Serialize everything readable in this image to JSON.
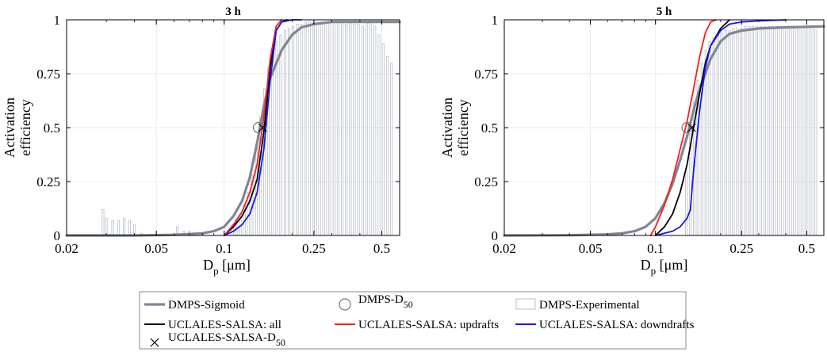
{
  "colors": {
    "sigmoid": "#7f8694",
    "experimental": "#b9bec6",
    "all": "#000000",
    "updrafts": "#ff1a1a",
    "downdrafts": "#1515ff",
    "frame": "#000000"
  },
  "legend": {
    "items": [
      {
        "key": "sigmoid",
        "label": "DMPS-Sigmoid",
        "symbol": "thick-line"
      },
      {
        "key": "d50",
        "label": "DMPS-D",
        "sub": "50",
        "symbol": "circle"
      },
      {
        "key": "experimental",
        "label": "DMPS-Experimental",
        "symbol": "box"
      },
      {
        "key": "all",
        "label": "UCLALES-SALSA: all",
        "symbol": "line"
      },
      {
        "key": "updrafts",
        "label": "UCLALES-SALSA: updrafts",
        "symbol": "line"
      },
      {
        "key": "downdrafts",
        "label": "UCLALES-SALSA: downdrafts",
        "symbol": "line"
      },
      {
        "key": "model_d50",
        "label": "UCLALES-SALSA-D",
        "sub": "50",
        "symbol": "cross"
      }
    ]
  },
  "chart_data": [
    {
      "type": "line",
      "title": "3 h",
      "xlabel": "D",
      "xlabel_sub": "p",
      "xlabel_unit": " [μm]",
      "ylabel_lines": [
        "Activation",
        "efficiency"
      ],
      "xscale": "log",
      "xlim": [
        0.02,
        0.6
      ],
      "ylim": [
        0,
        1
      ],
      "xticks": [
        0.02,
        0.05,
        0.1,
        0.25,
        0.5
      ],
      "xtick_labels": [
        "0.02",
        "0.05",
        "0.1",
        "0.25",
        "0.5"
      ],
      "yticks": [
        0,
        0.25,
        0.5,
        0.75,
        1
      ],
      "ytick_labels": [
        "0",
        "0.25",
        "0.5",
        "0.75",
        "1"
      ],
      "grid": true,
      "series": [
        {
          "key": "sigmoid",
          "x": [
            0.02,
            0.04,
            0.06,
            0.08,
            0.09,
            0.1,
            0.11,
            0.12,
            0.13,
            0.14,
            0.15,
            0.16,
            0.18,
            0.2,
            0.22,
            0.25,
            0.3,
            0.6
          ],
          "y": [
            0,
            0,
            0.003,
            0.01,
            0.02,
            0.04,
            0.09,
            0.16,
            0.27,
            0.43,
            0.6,
            0.73,
            0.86,
            0.93,
            0.965,
            0.98,
            0.99,
            0.99
          ]
        },
        {
          "key": "all",
          "x": [
            0.1,
            0.11,
            0.12,
            0.13,
            0.14,
            0.15,
            0.16,
            0.17,
            0.18,
            0.19
          ],
          "y": [
            0,
            0.04,
            0.09,
            0.16,
            0.26,
            0.48,
            0.78,
            0.95,
            0.99,
            1.0
          ]
        },
        {
          "key": "updrafts",
          "x": [
            0.1,
            0.11,
            0.12,
            0.13,
            0.14,
            0.15,
            0.16,
            0.17,
            0.18
          ],
          "y": [
            0,
            0.05,
            0.11,
            0.2,
            0.33,
            0.55,
            0.82,
            0.97,
            1.0
          ]
        },
        {
          "key": "downdrafts",
          "x": [
            0.1,
            0.11,
            0.12,
            0.13,
            0.14,
            0.15,
            0.16,
            0.17,
            0.18,
            0.2,
            0.22
          ],
          "y": [
            0,
            0.02,
            0.05,
            0.1,
            0.2,
            0.4,
            0.72,
            0.95,
            0.99,
            1.0,
            1.0
          ]
        }
      ],
      "d50_circle": {
        "x": 0.142,
        "y": 0.5
      },
      "d50_cross": {
        "x": 0.148,
        "y": 0.5
      },
      "bars": {
        "x": [
          0.029,
          0.03,
          0.032,
          0.034,
          0.036,
          0.038,
          0.04,
          0.043,
          0.062,
          0.066,
          0.07,
          0.075,
          0.08,
          0.109,
          0.113,
          0.118,
          0.123,
          0.128,
          0.133,
          0.139,
          0.145,
          0.151,
          0.157,
          0.164,
          0.171,
          0.178,
          0.186,
          0.194,
          0.202,
          0.211,
          0.22,
          0.229,
          0.239,
          0.249,
          0.26,
          0.271,
          0.282,
          0.294,
          0.307,
          0.32,
          0.334,
          0.348,
          0.363,
          0.378,
          0.394,
          0.411,
          0.429,
          0.447,
          0.466,
          0.486,
          0.507,
          0.529,
          0.551
        ],
        "y": [
          0.12,
          0.08,
          0.07,
          0.07,
          0.08,
          0.07,
          0.05,
          0.01,
          0.04,
          0.02,
          0.02,
          0.01,
          0.01,
          0.05,
          0.08,
          0.1,
          0.14,
          0.2,
          0.28,
          0.42,
          0.55,
          0.68,
          0.78,
          0.85,
          0.9,
          0.93,
          0.95,
          0.96,
          0.97,
          0.98,
          0.98,
          0.99,
          0.99,
          0.99,
          0.99,
          0.99,
          0.99,
          0.99,
          0.99,
          0.99,
          0.99,
          0.98,
          0.99,
          0.98,
          0.98,
          0.97,
          0.99,
          0.99,
          0.97,
          0.93,
          0.89,
          0.83,
          0.8
        ]
      }
    },
    {
      "type": "line",
      "title": "5 h",
      "xlabel": "D",
      "xlabel_sub": "p",
      "xlabel_unit": " [μm]",
      "ylabel_lines": [
        "Activation",
        "efficiency"
      ],
      "xscale": "log",
      "xlim": [
        0.02,
        0.6
      ],
      "ylim": [
        0,
        1
      ],
      "xticks": [
        0.02,
        0.05,
        0.1,
        0.25,
        0.5
      ],
      "xtick_labels": [
        "0.02",
        "0.05",
        "0.1",
        "0.25",
        "0.5"
      ],
      "yticks": [
        0,
        0.25,
        0.5,
        0.75,
        1
      ],
      "ytick_labels": [
        "0",
        "0.25",
        "0.5",
        "0.75",
        "1"
      ],
      "grid": true,
      "series": [
        {
          "key": "sigmoid",
          "x": [
            0.02,
            0.04,
            0.06,
            0.07,
            0.08,
            0.09,
            0.1,
            0.11,
            0.12,
            0.13,
            0.14,
            0.15,
            0.16,
            0.18,
            0.2,
            0.22,
            0.25,
            0.3,
            0.4,
            0.6
          ],
          "y": [
            0,
            0.001,
            0.005,
            0.01,
            0.02,
            0.04,
            0.08,
            0.15,
            0.24,
            0.35,
            0.46,
            0.58,
            0.68,
            0.82,
            0.9,
            0.935,
            0.95,
            0.96,
            0.965,
            0.97
          ]
        },
        {
          "key": "all",
          "x": [
            0.1,
            0.11,
            0.12,
            0.13,
            0.14,
            0.15,
            0.16,
            0.17,
            0.18,
            0.2,
            0.22
          ],
          "y": [
            0,
            0.04,
            0.1,
            0.2,
            0.33,
            0.5,
            0.66,
            0.8,
            0.88,
            0.96,
            1.0
          ]
        },
        {
          "key": "updrafts",
          "x": [
            0.095,
            0.1,
            0.11,
            0.12,
            0.13,
            0.14,
            0.15,
            0.16,
            0.17,
            0.18,
            0.19
          ],
          "y": [
            0,
            0.04,
            0.14,
            0.26,
            0.4,
            0.53,
            0.68,
            0.83,
            0.94,
            0.99,
            1.0
          ]
        },
        {
          "key": "downdrafts",
          "x": [
            0.1,
            0.12,
            0.13,
            0.14,
            0.145,
            0.15,
            0.16,
            0.17,
            0.18,
            0.2,
            0.22,
            0.25,
            0.3,
            0.4
          ],
          "y": [
            0,
            0.02,
            0.04,
            0.08,
            0.12,
            0.3,
            0.58,
            0.78,
            0.88,
            0.95,
            0.98,
            0.99,
            0.995,
            1.0
          ]
        }
      ],
      "d50_circle": {
        "x": 0.14,
        "y": 0.5
      },
      "d50_cross": {
        "x": 0.147,
        "y": 0.5
      },
      "bars": {
        "x": [
          0.139,
          0.145,
          0.151,
          0.157,
          0.164,
          0.171,
          0.178,
          0.186,
          0.194,
          0.202,
          0.211,
          0.22,
          0.229,
          0.239,
          0.249,
          0.26,
          0.271,
          0.282,
          0.294,
          0.307,
          0.32,
          0.334,
          0.348,
          0.363,
          0.378,
          0.394,
          0.411,
          0.429,
          0.447,
          0.466,
          0.486,
          0.507,
          0.529,
          0.551
        ],
        "y": [
          0.3,
          0.5,
          0.62,
          0.72,
          0.8,
          0.86,
          0.9,
          0.92,
          0.93,
          0.94,
          0.95,
          0.95,
          0.96,
          0.96,
          0.96,
          0.97,
          0.97,
          0.97,
          0.97,
          0.97,
          0.97,
          0.97,
          0.97,
          0.97,
          0.97,
          0.97,
          0.97,
          0.97,
          0.97,
          0.97,
          0.97,
          0.97,
          0.97,
          0.97
        ]
      }
    }
  ]
}
